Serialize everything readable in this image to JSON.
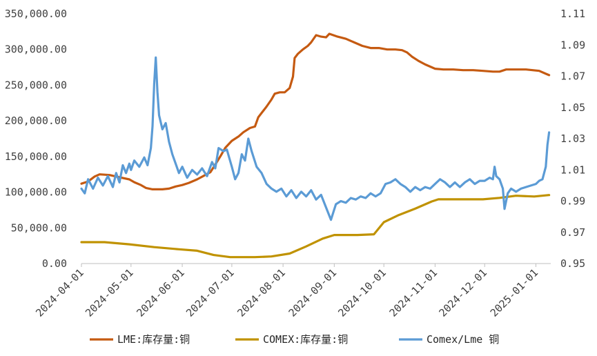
{
  "chart_data": {
    "type": "line",
    "title": "",
    "xlabel": "",
    "ylabel": "",
    "y2label": "",
    "x_type": "date",
    "xlim": [
      "2024-04-01",
      "2025-01-10"
    ],
    "ylim": [
      0,
      350000
    ],
    "y2lim": [
      0.95,
      1.11
    ],
    "x_ticks": [
      "2024-04-01",
      "2024-05-01",
      "2024-06-01",
      "2024-07-01",
      "2024-08-01",
      "2024-09-01",
      "2024-10-01",
      "2024-11-01",
      "2024-12-01",
      "2025-01-01"
    ],
    "y_ticks": [
      "0.00",
      "50,000.00",
      "100,000.00",
      "150,000.00",
      "200,000.00",
      "250,000.00",
      "300,000.00",
      "350,000.00"
    ],
    "y_tick_values": [
      0,
      50000,
      100000,
      150000,
      200000,
      250000,
      300000,
      350000
    ],
    "y2_ticks": [
      "0.95",
      "0.97",
      "0.99",
      "1.01",
      "1.03",
      "1.05",
      "1.07",
      "1.09",
      "1.11"
    ],
    "y2_tick_values": [
      0.95,
      0.97,
      0.99,
      1.01,
      1.03,
      1.05,
      1.07,
      1.09,
      1.11
    ],
    "grid": false,
    "legend_position": "bottom",
    "series": [
      {
        "name": "LME:库存量:铜",
        "color": "#C55A11",
        "axis": "left",
        "points": [
          [
            "2024-04-01",
            112000
          ],
          [
            "2024-04-05",
            115000
          ],
          [
            "2024-04-09",
            122000
          ],
          [
            "2024-04-12",
            125000
          ],
          [
            "2024-04-18",
            124000
          ],
          [
            "2024-04-24",
            121000
          ],
          [
            "2024-04-30",
            118000
          ],
          [
            "2024-05-03",
            114000
          ],
          [
            "2024-05-07",
            110000
          ],
          [
            "2024-05-10",
            106000
          ],
          [
            "2024-05-14",
            104000
          ],
          [
            "2024-05-20",
            104000
          ],
          [
            "2024-05-24",
            105000
          ],
          [
            "2024-05-28",
            108000
          ],
          [
            "2024-06-01",
            110000
          ],
          [
            "2024-06-05",
            113000
          ],
          [
            "2024-06-10",
            118000
          ],
          [
            "2024-06-14",
            123000
          ],
          [
            "2024-06-18",
            128000
          ],
          [
            "2024-06-20",
            135000
          ],
          [
            "2024-06-24",
            150000
          ],
          [
            "2024-06-27",
            162000
          ],
          [
            "2024-07-01",
            172000
          ],
          [
            "2024-07-05",
            178000
          ],
          [
            "2024-07-08",
            184000
          ],
          [
            "2024-07-12",
            190000
          ],
          [
            "2024-07-15",
            192000
          ],
          [
            "2024-07-17",
            205000
          ],
          [
            "2024-07-22",
            220000
          ],
          [
            "2024-07-25",
            230000
          ],
          [
            "2024-07-27",
            238000
          ],
          [
            "2024-07-30",
            240000
          ],
          [
            "2024-08-02",
            240000
          ],
          [
            "2024-08-05",
            246000
          ],
          [
            "2024-08-07",
            262000
          ],
          [
            "2024-08-08",
            288000
          ],
          [
            "2024-08-10",
            294000
          ],
          [
            "2024-08-13",
            300000
          ],
          [
            "2024-08-16",
            305000
          ],
          [
            "2024-08-18",
            310000
          ],
          [
            "2024-08-21",
            320000
          ],
          [
            "2024-08-24",
            318000
          ],
          [
            "2024-08-27",
            317000
          ],
          [
            "2024-08-29",
            322000
          ],
          [
            "2024-09-03",
            318000
          ],
          [
            "2024-09-08",
            315000
          ],
          [
            "2024-09-13",
            310000
          ],
          [
            "2024-09-18",
            305000
          ],
          [
            "2024-09-23",
            302000
          ],
          [
            "2024-09-28",
            302000
          ],
          [
            "2024-10-03",
            300000
          ],
          [
            "2024-10-08",
            300000
          ],
          [
            "2024-10-12",
            299000
          ],
          [
            "2024-10-15",
            296000
          ],
          [
            "2024-10-18",
            290000
          ],
          [
            "2024-10-22",
            284000
          ],
          [
            "2024-10-26",
            279000
          ],
          [
            "2024-10-29",
            276000
          ],
          [
            "2024-11-01",
            273000
          ],
          [
            "2024-11-06",
            272000
          ],
          [
            "2024-11-12",
            272000
          ],
          [
            "2024-11-18",
            271000
          ],
          [
            "2024-11-24",
            271000
          ],
          [
            "2024-11-30",
            270000
          ],
          [
            "2024-12-06",
            269000
          ],
          [
            "2024-12-10",
            269000
          ],
          [
            "2024-12-14",
            272000
          ],
          [
            "2024-12-20",
            272000
          ],
          [
            "2024-12-26",
            272000
          ],
          [
            "2024-12-30",
            271000
          ],
          [
            "2025-01-03",
            270000
          ],
          [
            "2025-01-07",
            266000
          ],
          [
            "2025-01-09",
            264000
          ]
        ]
      },
      {
        "name": "COMEX:库存量:铜",
        "color": "#C09200",
        "axis": "left",
        "points": [
          [
            "2024-04-01",
            30000
          ],
          [
            "2024-04-15",
            30000
          ],
          [
            "2024-04-30",
            27000
          ],
          [
            "2024-05-15",
            23000
          ],
          [
            "2024-05-30",
            20000
          ],
          [
            "2024-06-10",
            18000
          ],
          [
            "2024-06-20",
            12000
          ],
          [
            "2024-06-30",
            9000
          ],
          [
            "2024-07-15",
            9000
          ],
          [
            "2024-07-25",
            10000
          ],
          [
            "2024-08-05",
            14000
          ],
          [
            "2024-08-15",
            24000
          ],
          [
            "2024-08-25",
            35000
          ],
          [
            "2024-09-01",
            40000
          ],
          [
            "2024-09-15",
            40000
          ],
          [
            "2024-09-25",
            41000
          ],
          [
            "2024-10-01",
            58000
          ],
          [
            "2024-10-10",
            68000
          ],
          [
            "2024-10-20",
            77000
          ],
          [
            "2024-10-30",
            87000
          ],
          [
            "2024-11-03",
            90000
          ],
          [
            "2024-11-20",
            90000
          ],
          [
            "2024-11-30",
            90000
          ],
          [
            "2024-12-10",
            92000
          ],
          [
            "2024-12-20",
            95000
          ],
          [
            "2024-12-31",
            94000
          ],
          [
            "2025-01-09",
            96000
          ]
        ]
      },
      {
        "name": "Comex/Lme 铜",
        "color": "#5B9BD5",
        "axis": "right",
        "points": [
          [
            "2024-04-01",
            0.998
          ],
          [
            "2024-04-03",
            0.995
          ],
          [
            "2024-04-05",
            1.004
          ],
          [
            "2024-04-08",
            0.998
          ],
          [
            "2024-04-11",
            1.005
          ],
          [
            "2024-04-14",
            1.0
          ],
          [
            "2024-04-17",
            1.006
          ],
          [
            "2024-04-20",
            0.999
          ],
          [
            "2024-04-22",
            1.008
          ],
          [
            "2024-04-24",
            1.002
          ],
          [
            "2024-04-26",
            1.013
          ],
          [
            "2024-04-28",
            1.008
          ],
          [
            "2024-04-30",
            1.014
          ],
          [
            "2024-05-01",
            1.01
          ],
          [
            "2024-05-03",
            1.016
          ],
          [
            "2024-05-06",
            1.012
          ],
          [
            "2024-05-09",
            1.018
          ],
          [
            "2024-05-11",
            1.013
          ],
          [
            "2024-05-13",
            1.024
          ],
          [
            "2024-05-14",
            1.038
          ],
          [
            "2024-05-15",
            1.065
          ],
          [
            "2024-05-16",
            1.082
          ],
          [
            "2024-05-17",
            1.06
          ],
          [
            "2024-05-18",
            1.045
          ],
          [
            "2024-05-20",
            1.036
          ],
          [
            "2024-05-22",
            1.04
          ],
          [
            "2024-05-24",
            1.028
          ],
          [
            "2024-05-26",
            1.02
          ],
          [
            "2024-05-28",
            1.014
          ],
          [
            "2024-05-30",
            1.008
          ],
          [
            "2024-06-01",
            1.012
          ],
          [
            "2024-06-04",
            1.005
          ],
          [
            "2024-06-07",
            1.01
          ],
          [
            "2024-06-10",
            1.007
          ],
          [
            "2024-06-13",
            1.011
          ],
          [
            "2024-06-16",
            1.006
          ],
          [
            "2024-06-19",
            1.015
          ],
          [
            "2024-06-21",
            1.011
          ],
          [
            "2024-06-23",
            1.024
          ],
          [
            "2024-06-26",
            1.022
          ],
          [
            "2024-06-28",
            1.023
          ],
          [
            "2024-07-01",
            1.012
          ],
          [
            "2024-07-03",
            1.004
          ],
          [
            "2024-07-05",
            1.008
          ],
          [
            "2024-07-07",
            1.02
          ],
          [
            "2024-07-09",
            1.016
          ],
          [
            "2024-07-11",
            1.03
          ],
          [
            "2024-07-13",
            1.022
          ],
          [
            "2024-07-16",
            1.012
          ],
          [
            "2024-07-19",
            1.008
          ],
          [
            "2024-07-22",
            1.001
          ],
          [
            "2024-07-25",
            0.998
          ],
          [
            "2024-07-28",
            0.996
          ],
          [
            "2024-07-31",
            0.998
          ],
          [
            "2024-08-03",
            0.993
          ],
          [
            "2024-08-06",
            0.997
          ],
          [
            "2024-08-09",
            0.992
          ],
          [
            "2024-08-12",
            0.996
          ],
          [
            "2024-08-15",
            0.993
          ],
          [
            "2024-08-18",
            0.997
          ],
          [
            "2024-08-21",
            0.991
          ],
          [
            "2024-08-24",
            0.994
          ],
          [
            "2024-08-27",
            0.986
          ],
          [
            "2024-08-30",
            0.978
          ],
          [
            "2024-09-02",
            0.988
          ],
          [
            "2024-09-05",
            0.99
          ],
          [
            "2024-09-08",
            0.989
          ],
          [
            "2024-09-11",
            0.992
          ],
          [
            "2024-09-14",
            0.991
          ],
          [
            "2024-09-17",
            0.993
          ],
          [
            "2024-09-20",
            0.992
          ],
          [
            "2024-09-23",
            0.995
          ],
          [
            "2024-09-26",
            0.993
          ],
          [
            "2024-09-29",
            0.995
          ],
          [
            "2024-10-02",
            1.001
          ],
          [
            "2024-10-05",
            1.002
          ],
          [
            "2024-10-08",
            1.004
          ],
          [
            "2024-10-11",
            1.001
          ],
          [
            "2024-10-14",
            0.999
          ],
          [
            "2024-10-17",
            0.996
          ],
          [
            "2024-10-20",
            0.999
          ],
          [
            "2024-10-23",
            0.997
          ],
          [
            "2024-10-26",
            0.999
          ],
          [
            "2024-10-29",
            0.998
          ],
          [
            "2024-11-01",
            1.001
          ],
          [
            "2024-11-04",
            1.004
          ],
          [
            "2024-11-07",
            1.002
          ],
          [
            "2024-11-10",
            0.999
          ],
          [
            "2024-11-13",
            1.002
          ],
          [
            "2024-11-16",
            0.999
          ],
          [
            "2024-11-19",
            1.002
          ],
          [
            "2024-11-22",
            1.004
          ],
          [
            "2024-11-25",
            1.001
          ],
          [
            "2024-11-28",
            1.003
          ],
          [
            "2024-12-01",
            1.003
          ],
          [
            "2024-12-04",
            1.005
          ],
          [
            "2024-12-06",
            1.004
          ],
          [
            "2024-12-07",
            1.012
          ],
          [
            "2024-12-08",
            1.006
          ],
          [
            "2024-12-10",
            1.004
          ],
          [
            "2024-12-12",
            0.998
          ],
          [
            "2024-12-13",
            0.985
          ],
          [
            "2024-12-15",
            0.995
          ],
          [
            "2024-12-17",
            0.998
          ],
          [
            "2024-12-20",
            0.996
          ],
          [
            "2024-12-23",
            0.998
          ],
          [
            "2024-12-26",
            0.999
          ],
          [
            "2024-12-29",
            1.0
          ],
          [
            "2025-01-01",
            1.001
          ],
          [
            "2025-01-03",
            1.003
          ],
          [
            "2025-01-05",
            1.004
          ],
          [
            "2025-01-07",
            1.012
          ],
          [
            "2025-01-08",
            1.026
          ],
          [
            "2025-01-09",
            1.034
          ]
        ]
      }
    ]
  }
}
